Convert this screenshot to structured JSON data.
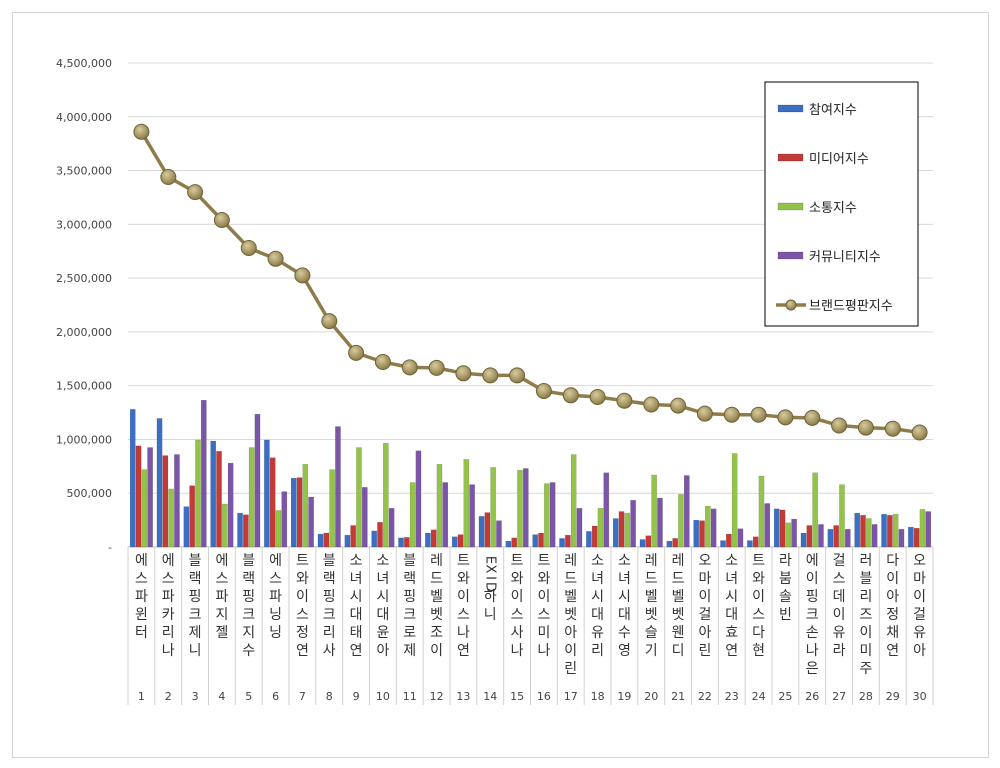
{
  "chart_data": {
    "type": "bar",
    "title": "",
    "xlabel": "",
    "ylabel": "",
    "ylim": [
      0,
      4500000
    ],
    "yticks": [
      0,
      500000,
      1000000,
      1500000,
      2000000,
      2500000,
      3000000,
      3500000,
      4000000,
      4500000
    ],
    "ytick_labels": [
      "-",
      "500,000",
      "1,000,000",
      "1,500,000",
      "2,000,000",
      "2,500,000",
      "3,000,000",
      "3,500,000",
      "4,000,000",
      "4,500,000"
    ],
    "grid": "horizontal",
    "legend_position": "right",
    "categories": [
      "에스파 윈터",
      "에스파 카리나",
      "블랙핑크 제니",
      "에스파 지젤",
      "블랙핑크 지수",
      "에스파 닝닝",
      "트와이스 정연",
      "블랙핑크 리사",
      "소녀시대 태연",
      "소녀시대 윤아",
      "블랙핑크 로제",
      "레드벨벳 조이",
      "트와이스 나연",
      "EXID 하니",
      "트와이스 사나",
      "트와이스 미나",
      "레드벨벳 아이린",
      "소녀시대 유리",
      "소녀시대 수영",
      "레드벨벳 슬기",
      "레드벨벳 웬디",
      "오마이걸 아린",
      "소녀시대 효연",
      "트와이스 다현",
      "라붐 솔빈",
      "에이핑크 손나은",
      "걸스데이 유라",
      "러블리즈 이미주",
      "다이아 정채연",
      "오마이걸 유아"
    ],
    "ranks": [
      "1",
      "2",
      "3",
      "4",
      "5",
      "6",
      "7",
      "8",
      "9",
      "10",
      "11",
      "12",
      "13",
      "14",
      "15",
      "16",
      "17",
      "18",
      "19",
      "20",
      "21",
      "22",
      "23",
      "24",
      "25",
      "26",
      "27",
      "28",
      "29",
      "30"
    ],
    "series": [
      {
        "name": "참여지수",
        "kind": "bar",
        "color": "#3b6fc4",
        "values": [
          1280000,
          1195000,
          375000,
          985000,
          315000,
          995000,
          640000,
          120000,
          110000,
          150000,
          85000,
          130000,
          95000,
          285000,
          55000,
          115000,
          80000,
          145000,
          265000,
          70000,
          55000,
          250000,
          60000,
          60000,
          355000,
          130000,
          165000,
          315000,
          305000,
          185000
        ]
      },
      {
        "name": "미디어지수",
        "kind": "bar",
        "color": "#c33a36",
        "values": [
          940000,
          850000,
          570000,
          890000,
          300000,
          830000,
          645000,
          130000,
          200000,
          230000,
          90000,
          160000,
          115000,
          320000,
          85000,
          130000,
          110000,
          195000,
          330000,
          105000,
          80000,
          245000,
          120000,
          95000,
          345000,
          200000,
          200000,
          295000,
          295000,
          175000
        ]
      },
      {
        "name": "소통지수",
        "kind": "bar",
        "color": "#93c34a",
        "values": [
          720000,
          540000,
          995000,
          400000,
          925000,
          340000,
          770000,
          720000,
          925000,
          965000,
          600000,
          770000,
          815000,
          740000,
          715000,
          590000,
          860000,
          360000,
          315000,
          670000,
          490000,
          380000,
          870000,
          660000,
          225000,
          690000,
          580000,
          265000,
          305000,
          350000
        ]
      },
      {
        "name": "커뮤니티지수",
        "kind": "bar",
        "color": "#7b56a8",
        "values": [
          925000,
          860000,
          1365000,
          780000,
          1235000,
          515000,
          465000,
          1120000,
          555000,
          360000,
          895000,
          600000,
          580000,
          245000,
          730000,
          600000,
          360000,
          690000,
          435000,
          455000,
          665000,
          355000,
          170000,
          405000,
          260000,
          210000,
          165000,
          210000,
          165000,
          330000
        ]
      },
      {
        "name": "브랜드평판지수",
        "kind": "line",
        "color": "#8e7d4a",
        "values": [
          3860000,
          3440000,
          3300000,
          3040000,
          2780000,
          2680000,
          2525000,
          2100000,
          1805000,
          1720000,
          1670000,
          1665000,
          1615000,
          1595000,
          1595000,
          1450000,
          1410000,
          1395000,
          1360000,
          1325000,
          1315000,
          1240000,
          1230000,
          1230000,
          1205000,
          1200000,
          1130000,
          1110000,
          1100000,
          1065000
        ]
      }
    ]
  }
}
